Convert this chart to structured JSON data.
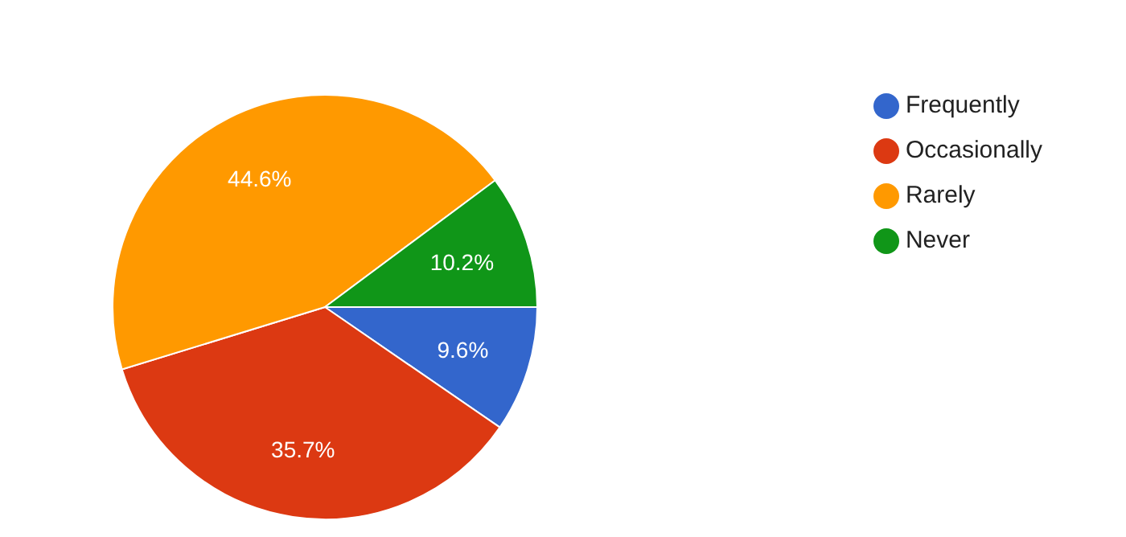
{
  "chart_data": {
    "type": "pie",
    "categories": [
      "Frequently",
      "Occasionally",
      "Rarely",
      "Never"
    ],
    "values": [
      9.6,
      35.7,
      44.6,
      10.2
    ],
    "colors": [
      "#3366cc",
      "#dc3912",
      "#ff9900",
      "#109618"
    ],
    "value_labels": [
      "9.6%",
      "35.7%",
      "44.6%",
      "10.2%"
    ],
    "legend": "top right"
  }
}
